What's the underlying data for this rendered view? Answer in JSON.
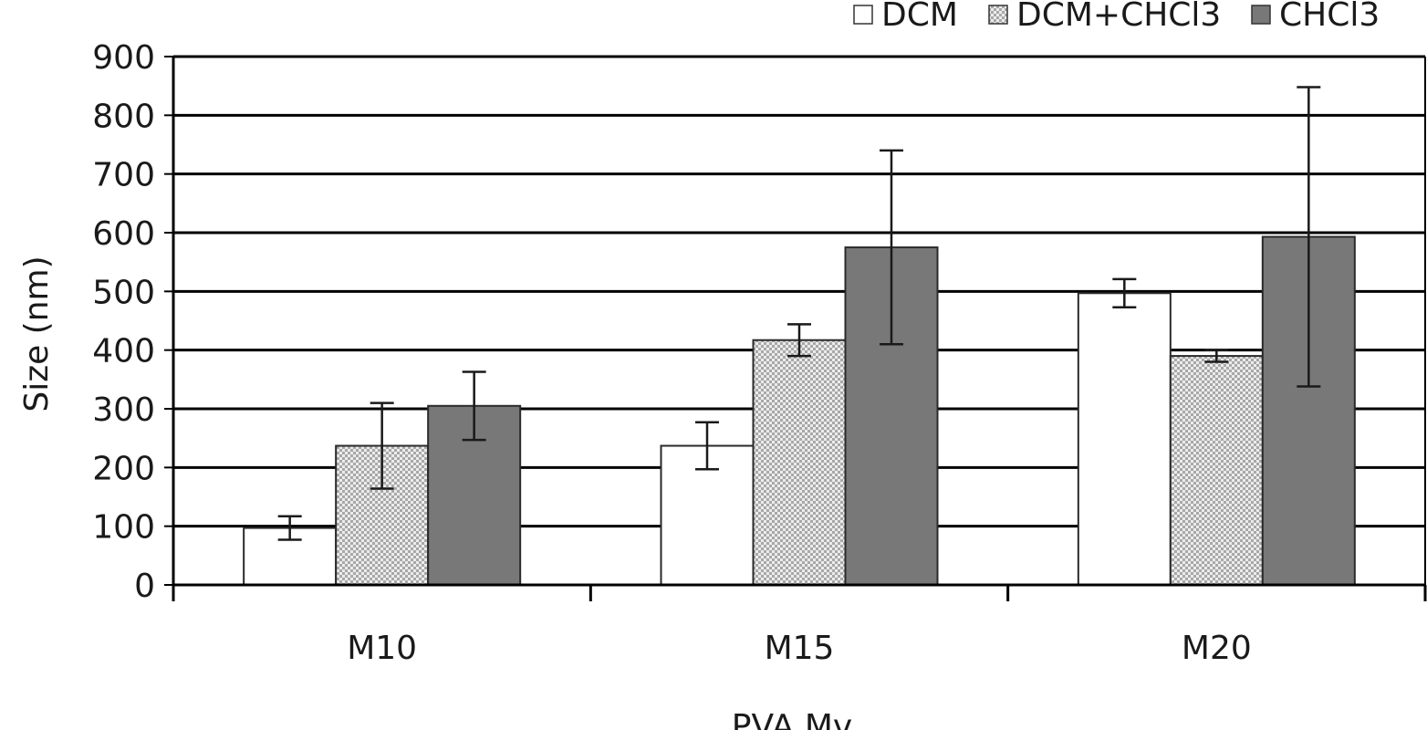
{
  "chart_data": {
    "type": "bar",
    "title": "",
    "xlabel": "PVA Mv",
    "ylabel": "Size (nm)",
    "ylim": [
      0,
      900
    ],
    "yticks": [
      0,
      100,
      200,
      300,
      400,
      500,
      600,
      700,
      800,
      900
    ],
    "categories": [
      "M10",
      "M15",
      "M20"
    ],
    "grid": true,
    "legend_position": "top-right",
    "series": [
      {
        "name": "DCM",
        "color": "#ffffff",
        "pattern": "none",
        "values": [
          97,
          237,
          497
        ],
        "errors": [
          20,
          40,
          24
        ]
      },
      {
        "name": "DCM+CHCl3",
        "color": "#d4d4d4",
        "pattern": "checker",
        "values": [
          237,
          417,
          390
        ],
        "errors": [
          73,
          27,
          10
        ]
      },
      {
        "name": "CHCl3",
        "color": "#787878",
        "pattern": "none",
        "values": [
          305,
          575,
          593
        ],
        "errors": [
          58,
          165,
          255
        ]
      }
    ]
  }
}
